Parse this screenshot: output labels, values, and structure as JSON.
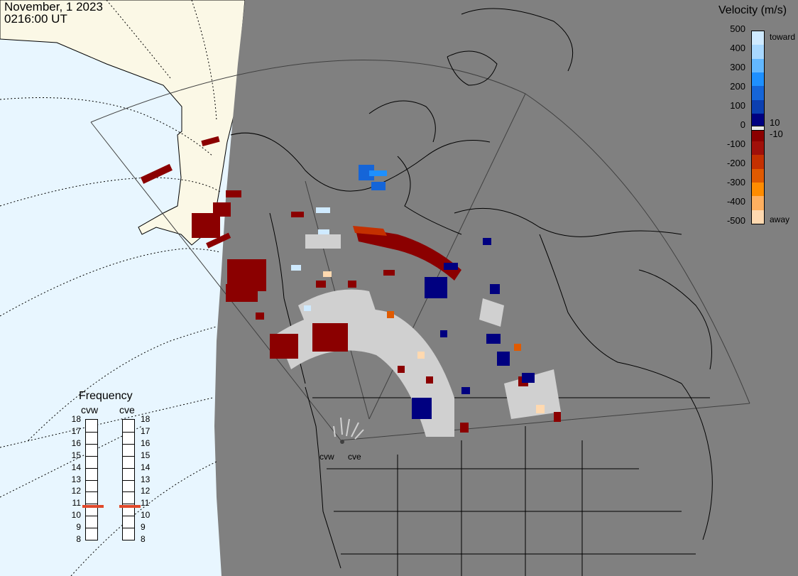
{
  "header": {
    "date": "November, 1 2023",
    "time": "0216:00 UT"
  },
  "colorbar": {
    "title": "Velocity (m/s)",
    "ticks": [
      "500",
      "400",
      "300",
      "200",
      "100",
      "0",
      "-100",
      "-200",
      "-300",
      "-400",
      "-500"
    ],
    "inner_labels": {
      "pos": "10",
      "neg": "-10"
    },
    "toward_label": "toward",
    "away_label": "away",
    "colors": [
      "#cfeaff",
      "#a8d8ff",
      "#63b8ff",
      "#1e90ff",
      "#1565d8",
      "#0b3fb0",
      "#000080",
      "#8b0000",
      "#a0100a",
      "#c43000",
      "#e05a00",
      "#ff8c00",
      "#ffb060",
      "#ffd9b0"
    ]
  },
  "frequency": {
    "title": "Frequency",
    "radars": [
      "cvw",
      "cve"
    ],
    "levels": [
      "18",
      "17",
      "16",
      "15",
      "14",
      "13",
      "12",
      "11",
      "10",
      "9",
      "8"
    ],
    "current_mhz": [
      10.7,
      10.7
    ]
  },
  "map": {
    "radar_labels": [
      "cvw",
      "cve"
    ],
    "colors": {
      "ocean": "#e8f6ff",
      "land_outside": "#fbf8e6",
      "night_shade": "#808080",
      "ground_scatter": "#d0d0d0",
      "marker_line": "#e0482a"
    }
  }
}
